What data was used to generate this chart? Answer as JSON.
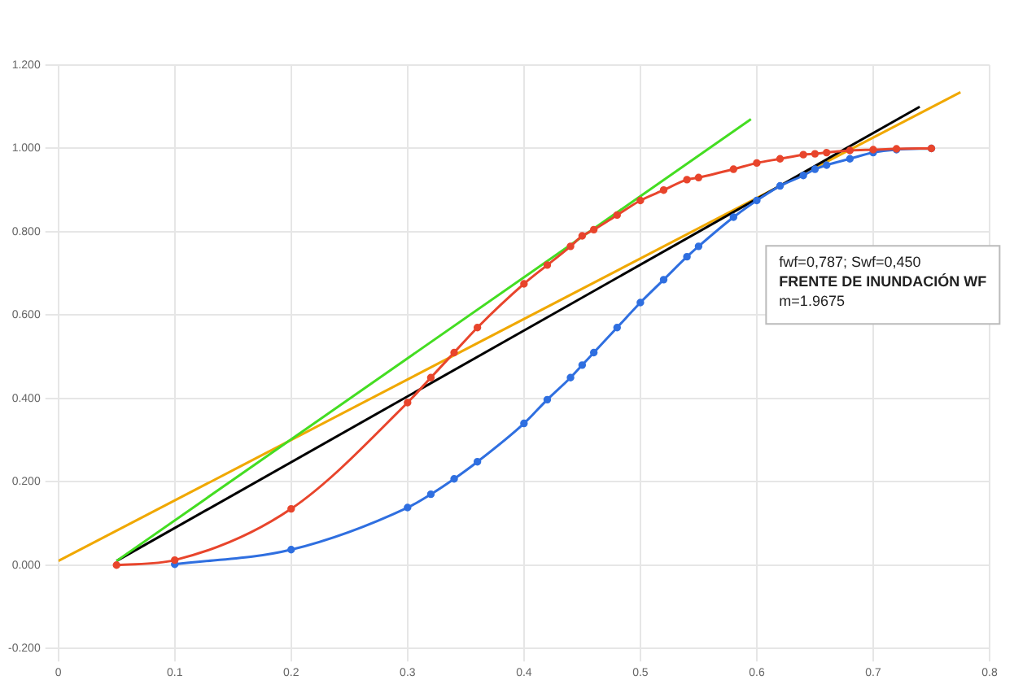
{
  "chart_data": {
    "type": "line",
    "xlim": [
      0,
      0.8
    ],
    "xticks": [
      0,
      0.1,
      0.2,
      0.3,
      0.4,
      0.5,
      0.6,
      0.7,
      0.8
    ],
    "ylim": [
      -0.2,
      1.2
    ],
    "yticks": [
      {
        "value": -0.2,
        "label": "-0.200"
      },
      {
        "value": 0,
        "label": "0.000"
      },
      {
        "value": 0.2,
        "label": "0.200"
      },
      {
        "value": 0.4,
        "label": "0.400"
      },
      {
        "value": 0.6,
        "label": "0.600"
      },
      {
        "value": 0.8,
        "label": "0.800"
      },
      {
        "value": 1,
        "label": "1.000"
      },
      {
        "value": 1.2,
        "label": "1.200"
      }
    ],
    "grid": true,
    "legend": false,
    "marker": "circle",
    "series": [
      {
        "color": "#e8452c",
        "x": [
          0.05,
          0.1,
          0.2,
          0.3,
          0.32,
          0.34,
          0.36,
          0.4,
          0.42,
          0.44,
          0.45,
          0.46,
          0.48,
          0.5,
          0.52,
          0.54,
          0.55,
          0.58,
          0.6,
          0.62,
          0.64,
          0.65,
          0.66,
          0.68,
          0.7,
          0.72,
          0.75
        ],
        "values": [
          0,
          0.012,
          0.135,
          0.39,
          0.45,
          0.51,
          0.57,
          0.675,
          0.72,
          0.765,
          0.79,
          0.805,
          0.84,
          0.875,
          0.9,
          0.925,
          0.93,
          0.95,
          0.965,
          0.975,
          0.985,
          0.987,
          0.99,
          0.995,
          0.997,
          0.999,
          1.0
        ]
      },
      {
        "color": "#2f6fe0",
        "x": [
          0.1,
          0.2,
          0.3,
          0.32,
          0.34,
          0.36,
          0.4,
          0.42,
          0.44,
          0.45,
          0.46,
          0.48,
          0.5,
          0.52,
          0.54,
          0.55,
          0.58,
          0.6,
          0.62,
          0.64,
          0.65,
          0.66,
          0.68,
          0.7,
          0.72,
          0.75
        ],
        "values": [
          0.002,
          0.037,
          0.138,
          0.17,
          0.207,
          0.248,
          0.34,
          0.397,
          0.45,
          0.48,
          0.51,
          0.57,
          0.63,
          0.685,
          0.74,
          0.765,
          0.835,
          0.875,
          0.91,
          0.935,
          0.95,
          0.96,
          0.975,
          0.99,
          0.997,
          1.0
        ]
      },
      {
        "color": "#44dd22",
        "marker": "none",
        "x": [
          0.05,
          0.595
        ],
        "values": [
          0.01,
          1.07
        ]
      },
      {
        "color": "#000000",
        "marker": "none",
        "x": [
          0.05,
          0.74
        ],
        "values": [
          0.01,
          1.1
        ]
      },
      {
        "color": "#f0a800",
        "marker": "none",
        "x": [
          0,
          0.775
        ],
        "values": [
          0.01,
          1.135
        ]
      }
    ],
    "annotations": [
      "fwf=0,787; Swf=0,450",
      "FRENTE DE INUNDACIÓN WF",
      "m=1.9675"
    ]
  }
}
